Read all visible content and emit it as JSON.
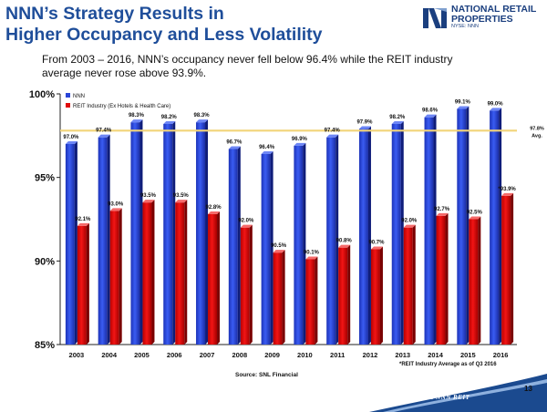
{
  "slide": {
    "title_line1": "NNN’s Strategy Results in",
    "title_line2": "Higher Occupancy and Less Volatility",
    "subtitle_line1": "From 2003 –  2016, NNN’s occupancy never fell below 96.4% while the REIT industry",
    "subtitle_line2": "average never rose above 93.9%.",
    "logo_line1": "NATIONAL RETAIL",
    "logo_line2": "PROPERTIES",
    "logo_ticker": "NYSE: NNN",
    "source": "Source:  SNL Financial",
    "footnote": "*REIT Industry Average as of Q3 2016",
    "page_number": "13",
    "footer_mark": "THE NNN REIT",
    "colors": {
      "title": "#1f4e9a",
      "nnn_bar": "#2a45d8",
      "reit_bar": "#e00a0a",
      "avg_line": "#f2d479",
      "logo": "#1b3f7f",
      "footer_wave": "#1b4a8f"
    }
  },
  "chart_data": {
    "type": "bar",
    "categories": [
      "2003",
      "2004",
      "2005",
      "2006",
      "2007",
      "2008",
      "2009",
      "2010",
      "2011",
      "2012",
      "2013",
      "2014",
      "2015",
      "2016"
    ],
    "series": [
      {
        "name": "NNN",
        "values": [
          97.0,
          97.4,
          98.3,
          98.2,
          98.3,
          96.7,
          96.4,
          96.9,
          97.4,
          97.9,
          98.2,
          98.6,
          99.1,
          99.0
        ],
        "labels": [
          "97.0%",
          "97.4%",
          "98.3%",
          "98.2%",
          "98.3%",
          "96.7%",
          "96.4%",
          "96.9%",
          "97.4%",
          "97.9%",
          "98.2%",
          "98.6%",
          "99.1%",
          "99.0%"
        ]
      },
      {
        "name": "REIT Industry (Ex Hotels & Health Care)",
        "values": [
          92.1,
          93.0,
          93.5,
          93.5,
          92.8,
          92.0,
          90.5,
          90.1,
          90.8,
          90.7,
          92.0,
          92.7,
          92.5,
          93.9
        ],
        "labels": [
          "92.1%",
          "93.0%",
          "93.5%",
          "93.5%",
          "92.8%",
          "92.0%",
          "90.5%",
          "90.1%",
          "90.8%",
          "90.7%",
          "92.0%",
          "92.7%",
          "92.5%",
          "*93.9%"
        ]
      }
    ],
    "reference_line": {
      "value": 97.8,
      "label_line1": "97.8%",
      "label_line2": "Avg."
    },
    "ylim": [
      85,
      100
    ],
    "yticks": [
      85,
      90,
      95,
      100
    ],
    "ytick_labels": [
      "85%",
      "90%",
      "95%",
      "100%"
    ],
    "grid": false,
    "legend_position": "top-left",
    "xlabel": "",
    "ylabel": ""
  }
}
